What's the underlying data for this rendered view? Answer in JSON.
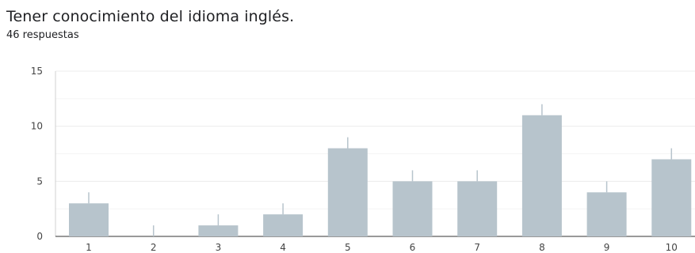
{
  "header": {
    "title": "Tener conocimiento del idioma inglés.",
    "responses": "46 respuestas"
  },
  "chart_data": {
    "type": "bar",
    "categories": [
      "1",
      "2",
      "3",
      "4",
      "5",
      "6",
      "7",
      "8",
      "9",
      "10"
    ],
    "values": [
      3,
      0,
      1,
      2,
      8,
      5,
      5,
      11,
      4,
      7
    ],
    "ylim": [
      0,
      15
    ],
    "yticks": [
      0,
      5,
      10,
      15
    ],
    "grid": true,
    "colors": {
      "bar": "#b7c4cc",
      "grid": "#ececec",
      "axis": "#333333",
      "error_line": "#b7c4cc"
    }
  }
}
